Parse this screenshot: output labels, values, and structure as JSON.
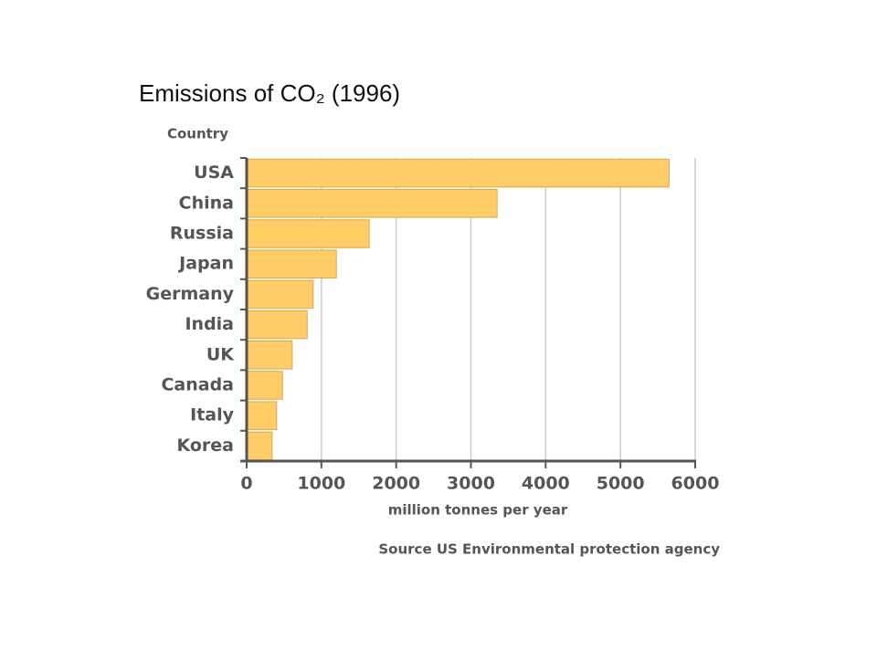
{
  "chart_data": {
    "type": "bar",
    "orientation": "horizontal",
    "title": "Emissions of CO₂ (1996)",
    "y_label": "Country",
    "x_label": "million tonnes per year",
    "source": "Source US Environmental protection agency",
    "categories": [
      "USA",
      "China",
      "Russia",
      "Japan",
      "Germany",
      "India",
      "UK",
      "Canada",
      "Italy",
      "Korea"
    ],
    "values": [
      5650,
      3350,
      1640,
      1200,
      890,
      810,
      610,
      480,
      400,
      340
    ],
    "color": "#ffcc66",
    "xlim": [
      0,
      6000
    ],
    "xticks": [
      0,
      1000,
      2000,
      3000,
      4000,
      5000,
      6000
    ],
    "grid": true
  }
}
